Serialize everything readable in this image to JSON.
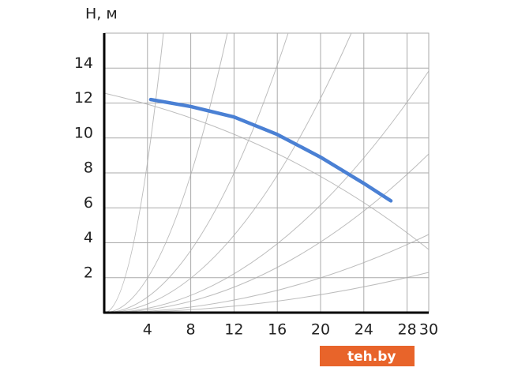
{
  "chart_data": {
    "type": "line",
    "y_label": "H, м",
    "x": [
      4.3,
      8,
      12,
      16,
      20,
      24,
      26.5
    ],
    "values": [
      12.2,
      11.8,
      11.2,
      10.2,
      8.9,
      7.4,
      6.4
    ],
    "color": "#4a80d4",
    "xlim": [
      0,
      30
    ],
    "xticks": [
      4,
      8,
      12,
      16,
      20,
      24,
      28,
      30
    ],
    "ylim": [
      0,
      16
    ],
    "yticks": [
      2,
      4,
      6,
      8,
      10,
      12,
      14
    ],
    "grid": true,
    "watermark": "teh.by"
  }
}
